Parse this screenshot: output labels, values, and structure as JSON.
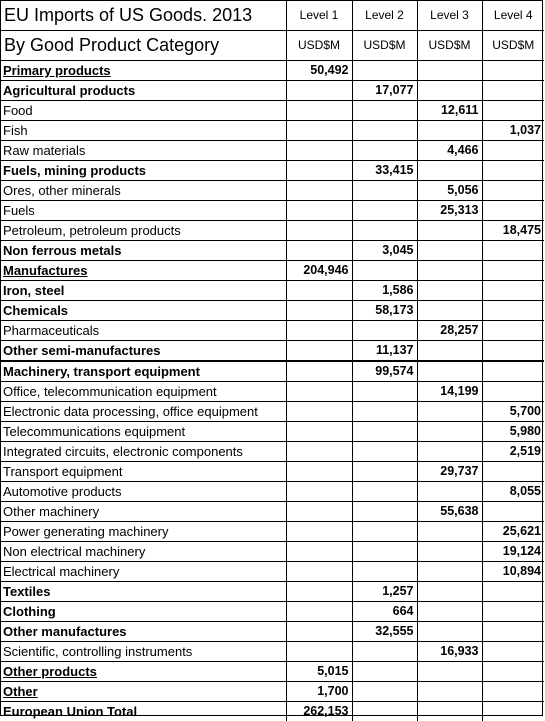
{
  "title_line1": "EU Imports of US Goods. 2013",
  "title_line2": "By Good Product Category",
  "levels": [
    "Level 1",
    "Level 2",
    "Level 3",
    "Level 4"
  ],
  "unit": "USD$M",
  "rows": [
    {
      "label": "Primary products",
      "bold": true,
      "underline": true,
      "level": 1,
      "value": "50,492"
    },
    {
      "label": "Agricultural products",
      "bold": true,
      "underline": false,
      "level": 2,
      "value": "17,077"
    },
    {
      "label": "Food",
      "bold": false,
      "underline": false,
      "level": 3,
      "value": "12,611"
    },
    {
      "label": "Fish",
      "bold": false,
      "underline": false,
      "level": 4,
      "value": "1,037"
    },
    {
      "label": "Raw materials",
      "bold": false,
      "underline": false,
      "level": 3,
      "value": "4,466"
    },
    {
      "label": "Fuels, mining products",
      "bold": true,
      "underline": false,
      "level": 2,
      "value": "33,415"
    },
    {
      "label": "Ores, other minerals",
      "bold": false,
      "underline": false,
      "level": 3,
      "value": "5,056"
    },
    {
      "label": "Fuels",
      "bold": false,
      "underline": false,
      "level": 3,
      "value": "25,313"
    },
    {
      "label": "Petroleum, petroleum products",
      "bold": false,
      "underline": false,
      "level": 4,
      "value": "18,475"
    },
    {
      "label": "Non ferrous metals",
      "bold": true,
      "underline": false,
      "level": 2,
      "value": "3,045"
    },
    {
      "label": "Manufactures",
      "bold": true,
      "underline": true,
      "level": 1,
      "value": "204,946"
    },
    {
      "label": "Iron, steel",
      "bold": true,
      "underline": false,
      "level": 2,
      "value": "1,586"
    },
    {
      "label": "Chemicals",
      "bold": true,
      "underline": false,
      "level": 2,
      "value": "58,173"
    },
    {
      "label": "Pharmaceuticals",
      "bold": false,
      "underline": false,
      "level": 3,
      "value": "28,257"
    },
    {
      "label": "Other semi-manufactures",
      "bold": true,
      "underline": false,
      "level": 2,
      "value": "11,137",
      "thick_bottom": true
    },
    {
      "label": "Machinery, transport equipment",
      "bold": true,
      "underline": false,
      "level": 2,
      "value": "99,574"
    },
    {
      "label": "Office, telecommunication equipment",
      "bold": false,
      "underline": false,
      "level": 3,
      "value": "14,199"
    },
    {
      "label": "Electronic data processing, office equipment",
      "bold": false,
      "underline": false,
      "level": 4,
      "value": "5,700"
    },
    {
      "label": "Telecommunications equipment",
      "bold": false,
      "underline": false,
      "level": 4,
      "value": "5,980"
    },
    {
      "label": "Integrated circuits, electronic components",
      "bold": false,
      "underline": false,
      "level": 4,
      "value": "2,519"
    },
    {
      "label": "Transport equipment",
      "bold": false,
      "underline": false,
      "level": 3,
      "value": "29,737"
    },
    {
      "label": "Automotive products",
      "bold": false,
      "underline": false,
      "level": 4,
      "value": "8,055"
    },
    {
      "label": "Other machinery",
      "bold": false,
      "underline": false,
      "level": 3,
      "value": "55,638"
    },
    {
      "label": "Power generating machinery",
      "bold": false,
      "underline": false,
      "level": 4,
      "value": "25,621"
    },
    {
      "label": "Non electrical machinery",
      "bold": false,
      "underline": false,
      "level": 4,
      "value": "19,124"
    },
    {
      "label": "Electrical machinery",
      "bold": false,
      "underline": false,
      "level": 4,
      "value": "10,894"
    },
    {
      "label": "Textiles",
      "bold": true,
      "underline": false,
      "level": 2,
      "value": "1,257"
    },
    {
      "label": "Clothing",
      "bold": true,
      "underline": false,
      "level": 2,
      "value": "664"
    },
    {
      "label": "Other manufactures",
      "bold": true,
      "underline": false,
      "level": 2,
      "value": "32,555"
    },
    {
      "label": "Scientific, controlling instruments",
      "bold": false,
      "underline": false,
      "level": 3,
      "value": "16,933"
    },
    {
      "label": "Other products",
      "bold": true,
      "underline": true,
      "level": 1,
      "value": "5,015"
    },
    {
      "label": "Other",
      "bold": true,
      "underline": true,
      "level": 1,
      "value": "1,700"
    },
    {
      "label": "European Union Total",
      "bold": true,
      "underline": false,
      "level": 1,
      "value": "262,153"
    }
  ]
}
